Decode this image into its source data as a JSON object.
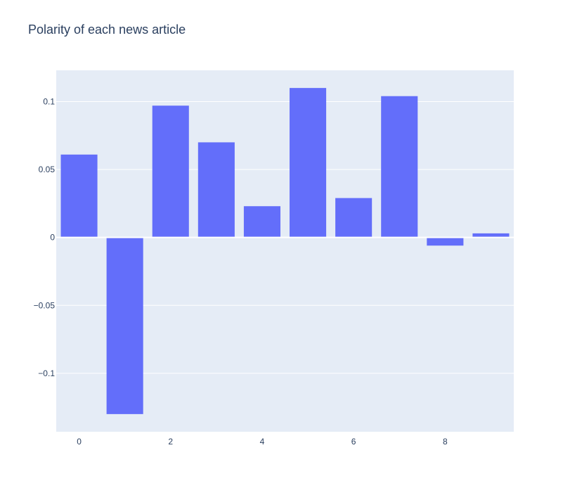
{
  "chart_data": {
    "type": "bar",
    "title": "Polarity of each news article",
    "xlabel": "",
    "ylabel": "",
    "categories": [
      0,
      1,
      2,
      3,
      4,
      5,
      6,
      7,
      8,
      9
    ],
    "values": [
      0.061,
      -0.13,
      0.097,
      0.07,
      0.023,
      0.11,
      0.029,
      0.104,
      -0.006,
      0.003
    ],
    "xlim": [
      -0.5,
      9.5
    ],
    "ylim": [
      -0.143,
      0.123
    ],
    "x_ticks": [
      0,
      2,
      4,
      6,
      8
    ],
    "x_tick_labels": [
      "0",
      "2",
      "4",
      "6",
      "8"
    ],
    "y_ticks": [
      -0.1,
      -0.05,
      0,
      0.05,
      0.1
    ],
    "y_tick_labels": [
      "−0.1",
      "−0.05",
      "0",
      "0.05",
      "0.1"
    ],
    "grid": true,
    "colors": {
      "bar": "#636efa",
      "plot_background": "#e5ecf6",
      "grid": "#ffffff",
      "text": "#2a3f5f"
    }
  }
}
